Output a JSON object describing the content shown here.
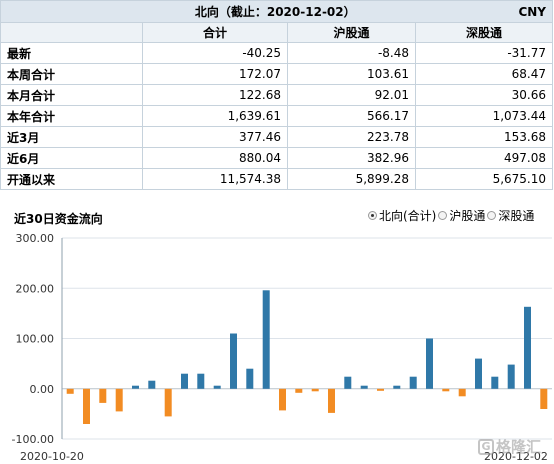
{
  "header": {
    "title": "北向（截止：2020-12-02）",
    "unit": "CNY"
  },
  "columns": [
    "合计",
    "沪股通",
    "深股通"
  ],
  "rows": [
    {
      "label": "最新",
      "values": [
        "-40.25",
        "-8.48",
        "-31.77"
      ]
    },
    {
      "label": "本周合计",
      "values": [
        "172.07",
        "103.61",
        "68.47"
      ]
    },
    {
      "label": "本月合计",
      "values": [
        "122.68",
        "92.01",
        "30.66"
      ]
    },
    {
      "label": "本年合计",
      "values": [
        "1,639.61",
        "566.17",
        "1,073.44"
      ]
    },
    {
      "label": "近3月",
      "values": [
        "377.46",
        "223.78",
        "153.68"
      ]
    },
    {
      "label": "近6月",
      "values": [
        "880.04",
        "382.96",
        "497.08"
      ]
    },
    {
      "label": "开通以来",
      "values": [
        "11,574.38",
        "5,899.28",
        "5,675.10"
      ]
    }
  ],
  "chart": {
    "title": "近30日资金流向"
  },
  "legend": [
    {
      "label": "北向(合计)",
      "selected": true
    },
    {
      "label": "沪股通",
      "selected": false
    },
    {
      "label": "深股通",
      "selected": false
    }
  ],
  "watermark": {
    "icon_text": "G",
    "text": "格隆汇"
  },
  "colors": {
    "positive": "#2f78a8",
    "negative": "#f28c23",
    "grid": "#dde3ea",
    "axis": "#333333"
  },
  "chart_data": {
    "type": "bar",
    "ylim": [
      -100,
      300
    ],
    "yticks": [
      "-100.00",
      "0.00",
      "100.00",
      "200.00",
      "300.00"
    ],
    "ytick_values": [
      -100,
      0,
      100,
      200,
      300
    ],
    "x_start_label": "2020-10-20",
    "x_end_label": "2020-12-02",
    "values": [
      -10,
      -70,
      -28,
      -45,
      6,
      16,
      -55,
      30,
      30,
      6,
      110,
      40,
      196,
      -43,
      -8,
      -5,
      -48,
      24,
      6,
      -4,
      6,
      24,
      100,
      -5,
      -15,
      60,
      24,
      48,
      163,
      -40.25
    ]
  }
}
